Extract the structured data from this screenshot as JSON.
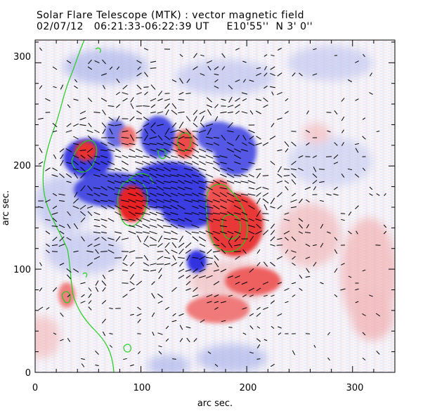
{
  "header": {
    "title": "Solar Flare Telescope (MTK) : vector magnetic field",
    "subtitle": "02/07/12   06:21:33-06:22:39 UT     E10'55''  N 3' 0''"
  },
  "axes": {
    "xlabel": "arc sec.",
    "ylabel": "arc sec.",
    "xticks": [
      "0",
      "100",
      "200",
      "300"
    ],
    "yticks": [
      "0",
      "100",
      "200",
      "300"
    ],
    "xlim": [
      0,
      340
    ],
    "ylim": [
      0,
      322
    ]
  },
  "colors": {
    "positive_polarity": "#ee2222",
    "negative_polarity": "#2222dd",
    "contour": "#22cc22",
    "vectors": "#000000",
    "background": "#ffffff"
  }
}
